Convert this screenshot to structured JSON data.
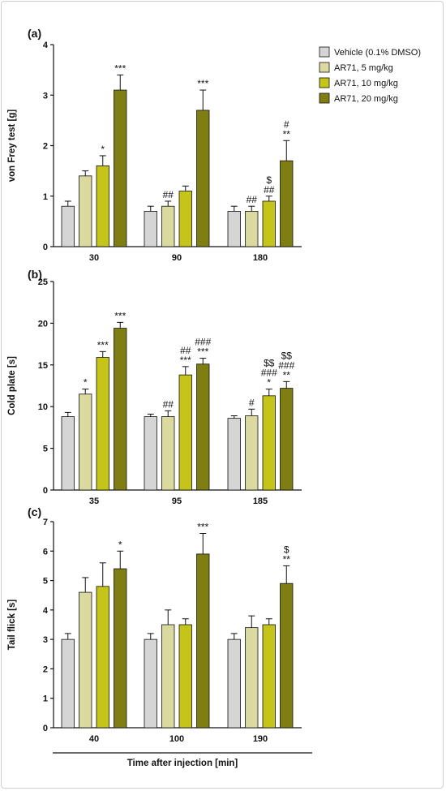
{
  "colors": {
    "vehicle": "#d5d5d5",
    "ar71_5": "#dadaa0",
    "ar71_10": "#c4c41a",
    "ar71_20": "#7e7e12",
    "axis": "#111111"
  },
  "legend": [
    "Vehicle (0.1% DMSO)",
    "AR71, 5 mg/kg",
    "AR71, 10 mg/kg",
    "AR71, 20 mg/kg"
  ],
  "x_title": "Time after injection [min]",
  "chart_data": [
    {
      "type": "bar",
      "panel_label": "(a)",
      "ylabel": "von Frey test [g]",
      "ylim": [
        0,
        4
      ],
      "yticks": [
        "0",
        "1",
        "2",
        "3",
        "4"
      ],
      "categories": [
        "30",
        "90",
        "180"
      ],
      "series": [
        {
          "name": "Vehicle (0.1% DMSO)",
          "values": [
            0.8,
            0.7,
            0.7
          ],
          "errors": [
            0.1,
            0.1,
            0.1
          ]
        },
        {
          "name": "AR71, 5 mg/kg",
          "values": [
            1.4,
            0.8,
            0.7
          ],
          "errors": [
            0.1,
            0.1,
            0.1
          ]
        },
        {
          "name": "AR71, 10 mg/kg",
          "values": [
            1.6,
            1.1,
            0.9
          ],
          "errors": [
            0.2,
            0.1,
            0.1
          ]
        },
        {
          "name": "AR71, 20 mg/kg",
          "values": [
            3.1,
            2.7,
            1.7
          ],
          "errors": [
            0.3,
            0.4,
            0.4
          ]
        }
      ],
      "annotations": [
        [
          [],
          [],
          [
            "*"
          ],
          [
            "***"
          ]
        ],
        [
          [],
          [
            "##"
          ],
          [],
          [
            "***"
          ]
        ],
        [
          [],
          [
            "##"
          ],
          [
            "$",
            "##"
          ],
          [
            "#",
            "**"
          ]
        ]
      ]
    },
    {
      "type": "bar",
      "panel_label": "(b)",
      "ylabel": "Cold plate [s]",
      "ylim": [
        0,
        25
      ],
      "yticks": [
        "0",
        "5",
        "10",
        "15",
        "20",
        "25"
      ],
      "categories": [
        "35",
        "95",
        "185"
      ],
      "series": [
        {
          "name": "Vehicle (0.1% DMSO)",
          "values": [
            8.8,
            8.8,
            8.6
          ],
          "errors": [
            0.5,
            0.3,
            0.3
          ]
        },
        {
          "name": "AR71, 5 mg/kg",
          "values": [
            11.5,
            8.8,
            8.9
          ],
          "errors": [
            0.6,
            0.7,
            0.8
          ]
        },
        {
          "name": "AR71, 10 mg/kg",
          "values": [
            15.9,
            13.8,
            11.3
          ],
          "errors": [
            0.7,
            1.0,
            0.8
          ]
        },
        {
          "name": "AR71, 20 mg/kg",
          "values": [
            19.4,
            15.1,
            12.2
          ],
          "errors": [
            0.7,
            0.7,
            0.8
          ]
        }
      ],
      "annotations": [
        [
          [],
          [
            "*"
          ],
          [
            "***"
          ],
          [
            "***"
          ]
        ],
        [
          [],
          [
            "##"
          ],
          [
            "##",
            "***"
          ],
          [
            "###",
            "***"
          ]
        ],
        [
          [],
          [
            "#"
          ],
          [
            "$$",
            "###",
            "*"
          ],
          [
            "$$",
            "###",
            "**"
          ]
        ]
      ]
    },
    {
      "type": "bar",
      "panel_label": "(c)",
      "ylabel": "Tail flick [s]",
      "ylim": [
        0,
        7
      ],
      "yticks": [
        "0",
        "1",
        "2",
        "3",
        "4",
        "5",
        "6",
        "7"
      ],
      "categories": [
        "40",
        "100",
        "190"
      ],
      "series": [
        {
          "name": "Vehicle (0.1% DMSO)",
          "values": [
            3.0,
            3.0,
            3.0
          ],
          "errors": [
            0.2,
            0.2,
            0.2
          ]
        },
        {
          "name": "AR71, 5 mg/kg",
          "values": [
            4.6,
            3.5,
            3.4
          ],
          "errors": [
            0.5,
            0.5,
            0.4
          ]
        },
        {
          "name": "AR71, 10 mg/kg",
          "values": [
            4.8,
            3.5,
            3.5
          ],
          "errors": [
            0.8,
            0.2,
            0.2
          ]
        },
        {
          "name": "AR71, 20 mg/kg",
          "values": [
            5.4,
            5.9,
            4.9
          ],
          "errors": [
            0.6,
            0.7,
            0.6
          ]
        }
      ],
      "annotations": [
        [
          [],
          [],
          [],
          [
            "*"
          ]
        ],
        [
          [],
          [],
          [],
          [
            "***"
          ]
        ],
        [
          [],
          [],
          [],
          [
            "$",
            "**"
          ]
        ]
      ]
    }
  ]
}
